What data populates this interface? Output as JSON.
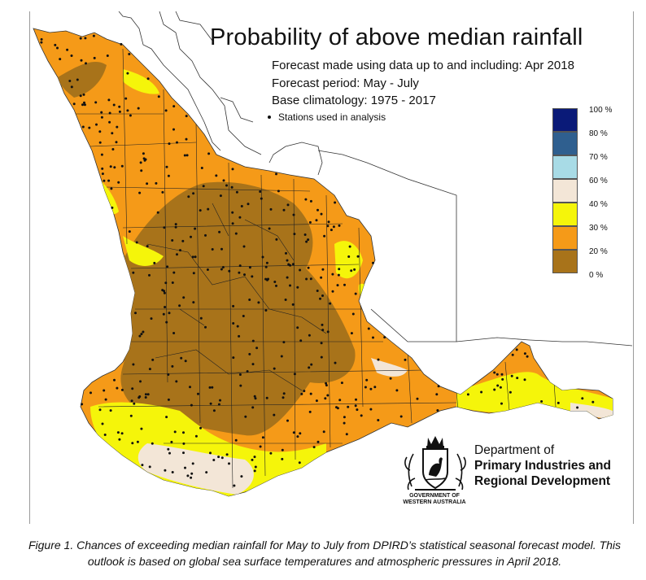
{
  "title": "Probability of above median rainfall",
  "subtitle_lines": {
    "forecast_made": "Forecast made using data up to and including: Apr 2018",
    "forecast_period": "Forecast period: May - July",
    "base_climatology": "Base climatology: 1975 - 2017",
    "stations": "Stations used in analysis"
  },
  "legend": {
    "colors": [
      "#0a1a78",
      "#2f5f8f",
      "#a8dbe6",
      "#f3e6d7",
      "#f5f50a",
      "#f59a18",
      "#a8731a"
    ],
    "labels": [
      "100 %",
      "80 %",
      "70 %",
      "60 %",
      "40 %",
      "30 %",
      "20 %",
      "0 %"
    ]
  },
  "dept": {
    "line1": "Department of",
    "line2": "Primary Industries and",
    "line3": "Regional Development"
  },
  "govt": {
    "line1": "GOVERNMENT OF",
    "line2": "WESTERN AUSTRALIA"
  },
  "caption": "Figure 1. Chances of exceeding median rainfall for May to July from DPIRD’s statistical seasonal forecast model.  This outlook is based on global sea surface temperatures and atmospheric pressures in April 2018."
}
